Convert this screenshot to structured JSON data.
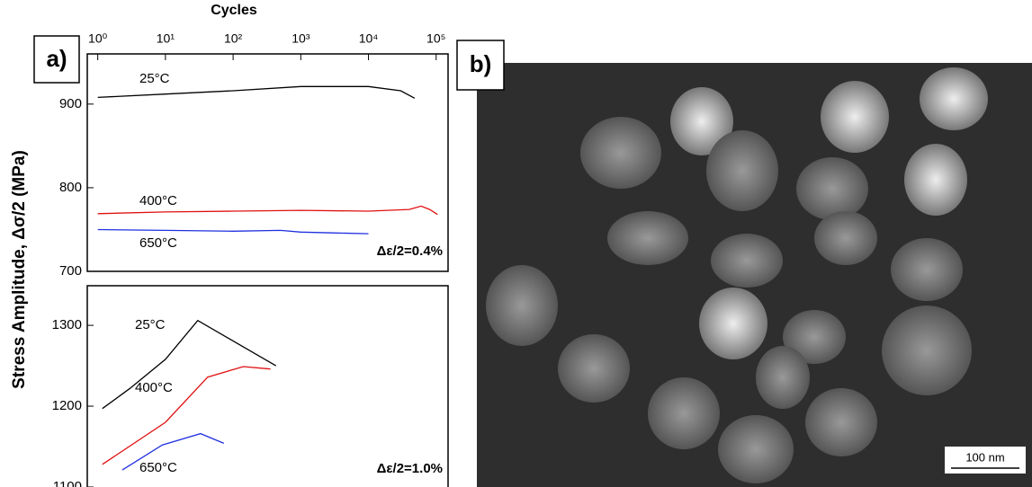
{
  "panel_labels": [
    "a)",
    "b)"
  ],
  "ylabel": "Stress Amplitude, Δσ/2 (MPa)",
  "scale_bar": "100 nm",
  "chart_data": [
    {
      "type": "line",
      "xlabel": "Cycles",
      "log_x": true,
      "xlim": [
        0.7,
        150000
      ],
      "xticks": [
        {
          "value": 1,
          "label": "10⁰"
        },
        {
          "value": 10,
          "label": "10¹"
        },
        {
          "value": 100,
          "label": "10²"
        },
        {
          "value": 1000,
          "label": "10³"
        },
        {
          "value": 10000,
          "label": "10⁴"
        },
        {
          "value": 100000,
          "label": "10⁵"
        }
      ],
      "ylim": [
        700,
        960
      ],
      "yticks": [
        700,
        800,
        900
      ],
      "annotation": "Δε/2=0.4%",
      "series": [
        {
          "name": "25°C",
          "color": "#000000",
          "x": [
            1,
            10,
            100,
            1000,
            10000,
            30000,
            48000
          ],
          "values": [
            908,
            912,
            916,
            921,
            921,
            916,
            907
          ]
        },
        {
          "name": "400°C",
          "color": "#e01010",
          "x": [
            1,
            10,
            100,
            1000,
            10000,
            40000,
            60000,
            80000,
            105000
          ],
          "values": [
            769,
            771,
            772,
            773,
            772,
            774,
            778,
            774,
            768
          ]
        },
        {
          "name": "650°C",
          "color": "#2030e0",
          "x": [
            1,
            10,
            100,
            500,
            1000,
            3000,
            10000
          ],
          "values": [
            750,
            749,
            748,
            749,
            747,
            746,
            745
          ]
        }
      ]
    },
    {
      "type": "line",
      "log_x": true,
      "xlim": [
        0.7,
        150000
      ],
      "ylim": [
        1100,
        1349
      ],
      "yticks": [
        1100,
        1200,
        1300
      ],
      "annotation": "Δε/2=1.0%",
      "series": [
        {
          "name": "25°C",
          "color": "#000000",
          "x": [
            1.17,
            3,
            10,
            30,
            430
          ],
          "values": [
            1197,
            1222,
            1258,
            1306,
            1250
          ]
        },
        {
          "name": "400°C",
          "color": "#e01010",
          "x": [
            1.17,
            10,
            42,
            142,
            356
          ],
          "values": [
            1128,
            1180,
            1236,
            1249,
            1246
          ]
        },
        {
          "name": "650°C",
          "color": "#2030e0",
          "x": [
            2.3,
            9,
            33,
            73
          ],
          "values": [
            1121,
            1152,
            1166,
            1154
          ]
        }
      ]
    }
  ]
}
